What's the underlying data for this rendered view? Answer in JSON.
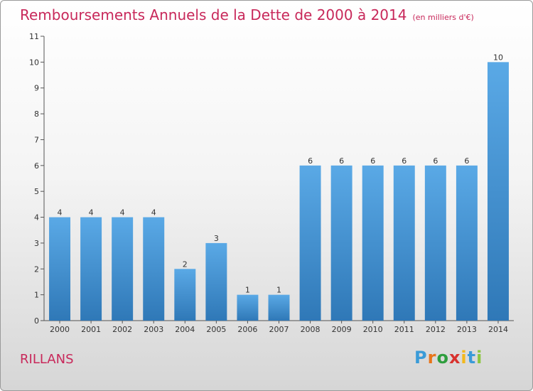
{
  "title": "Remboursements Annuels de la Dette de 2000 à 2014",
  "unit": "(en milliers d'€)",
  "commune": "RILLANS",
  "logo": {
    "letters": [
      "P",
      "r",
      "o",
      "x",
      "i",
      "t",
      "i"
    ],
    "colors": [
      "#3a9bd8",
      "#e8751a",
      "#2e9e3e",
      "#d8322e",
      "#f2b81c",
      "#3a9bd8",
      "#8cc63f"
    ]
  },
  "colors": {
    "bar_top": "#5aa9e6",
    "bar_bottom": "#2f78b7",
    "title": "#c8285a"
  },
  "chart_data": {
    "type": "bar",
    "categories": [
      "2000",
      "2001",
      "2002",
      "2003",
      "2004",
      "2005",
      "2006",
      "2007",
      "2008",
      "2009",
      "2010",
      "2011",
      "2012",
      "2013",
      "2014"
    ],
    "values": [
      4,
      4,
      4,
      4,
      2,
      3,
      1,
      1,
      6,
      6,
      6,
      6,
      6,
      6,
      10
    ],
    "value_labels": [
      "4",
      "4",
      "4",
      "4",
      "2",
      "3",
      "1",
      "1",
      "6",
      "6",
      "6",
      "6",
      "6",
      "6",
      "10"
    ],
    "yticks": [
      "0",
      "1",
      "2",
      "3",
      "4",
      "5",
      "6",
      "7",
      "8",
      "9",
      "10",
      "11"
    ],
    "ylim": [
      0,
      11
    ],
    "grid": false,
    "legend": "none"
  }
}
